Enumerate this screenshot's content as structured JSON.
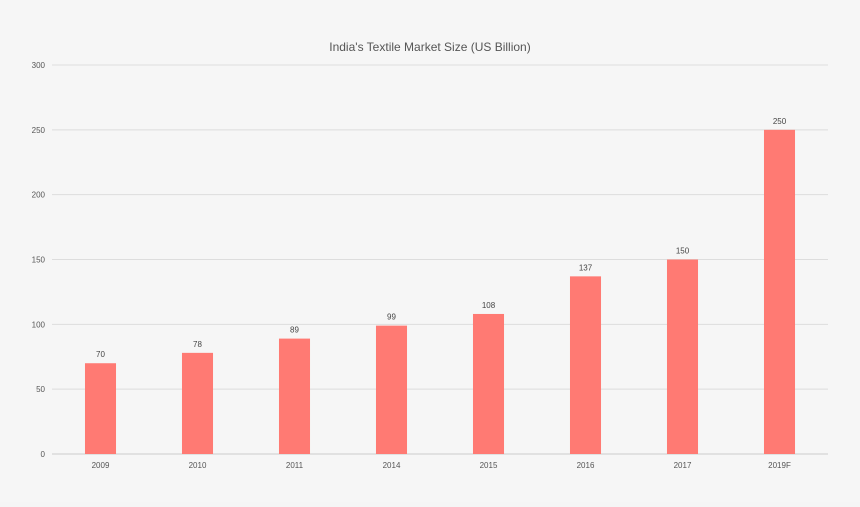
{
  "chart_data": {
    "type": "bar",
    "title": "India's Textile Market Size (US Billion)",
    "xlabel": "",
    "ylabel": "",
    "categories": [
      "2009",
      "2010",
      "2011",
      "2014",
      "2015",
      "2016",
      "2017",
      "2019F"
    ],
    "values": [
      70,
      78,
      89,
      99,
      108,
      137,
      150,
      250
    ],
    "ylim": [
      0,
      300
    ],
    "yticks": [
      0,
      50,
      100,
      150,
      200,
      250,
      300
    ],
    "grid": true,
    "legend": "none",
    "bar_color": "#ff7a73",
    "data_labels": true
  }
}
